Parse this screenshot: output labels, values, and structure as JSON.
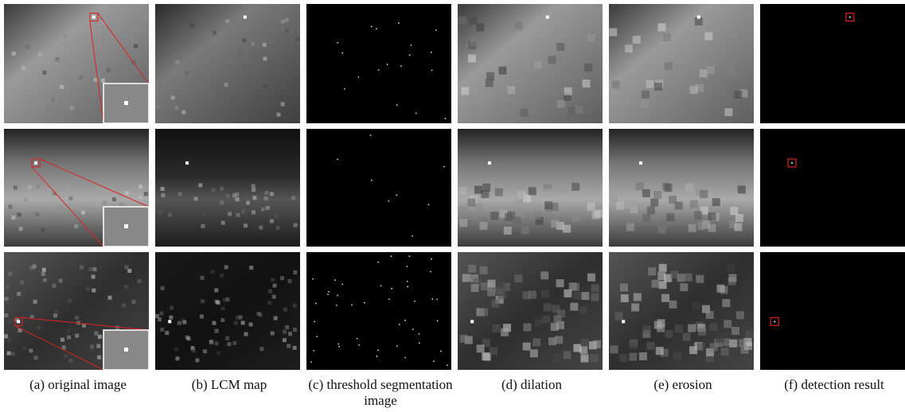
{
  "figure": {
    "captions": [
      "(a) original image",
      "(b) LCM map",
      "(c) threshold segmentation image",
      "(d) dilation",
      "(e) erosion",
      "(f) detection result"
    ]
  }
}
